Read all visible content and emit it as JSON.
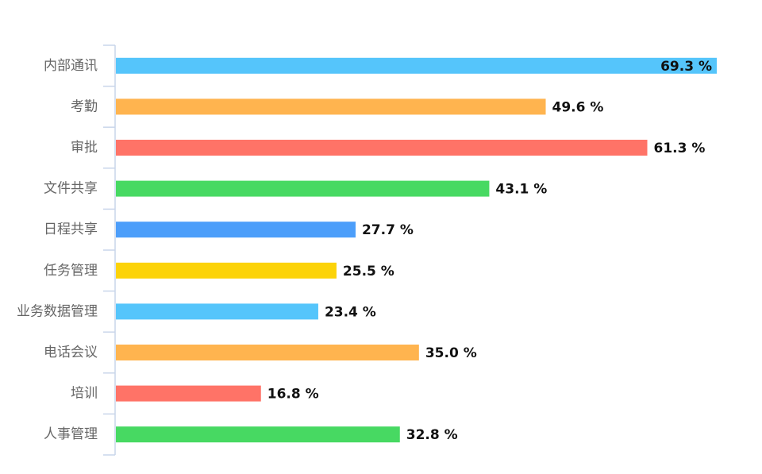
{
  "chart_data": {
    "type": "bar",
    "orientation": "horizontal",
    "categories": [
      "内部通讯",
      "考勤",
      "审批",
      "文件共享",
      "日程共享",
      "任务管理",
      "业务数据管理",
      "电话会议",
      "培训",
      "人事管理"
    ],
    "values": [
      69.3,
      49.6,
      61.3,
      43.1,
      27.7,
      25.5,
      23.4,
      35.0,
      16.8,
      32.8
    ],
    "value_labels": [
      "69.3 %",
      "49.6 %",
      "61.3 %",
      "43.1 %",
      "27.7 %",
      "25.5 %",
      "23.4 %",
      "35.0 %",
      "16.8 %",
      "32.8 %"
    ],
    "colors": [
      "#55c5fb",
      "#ffb44f",
      "#ff7367",
      "#47d962",
      "#4c9efa",
      "#fcd308",
      "#55c5fb",
      "#ffb44f",
      "#ff7367",
      "#47d962"
    ],
    "xlim": [
      0,
      69.3
    ],
    "grid": false,
    "legend": "none",
    "title": "",
    "xlabel": "",
    "ylabel": ""
  }
}
